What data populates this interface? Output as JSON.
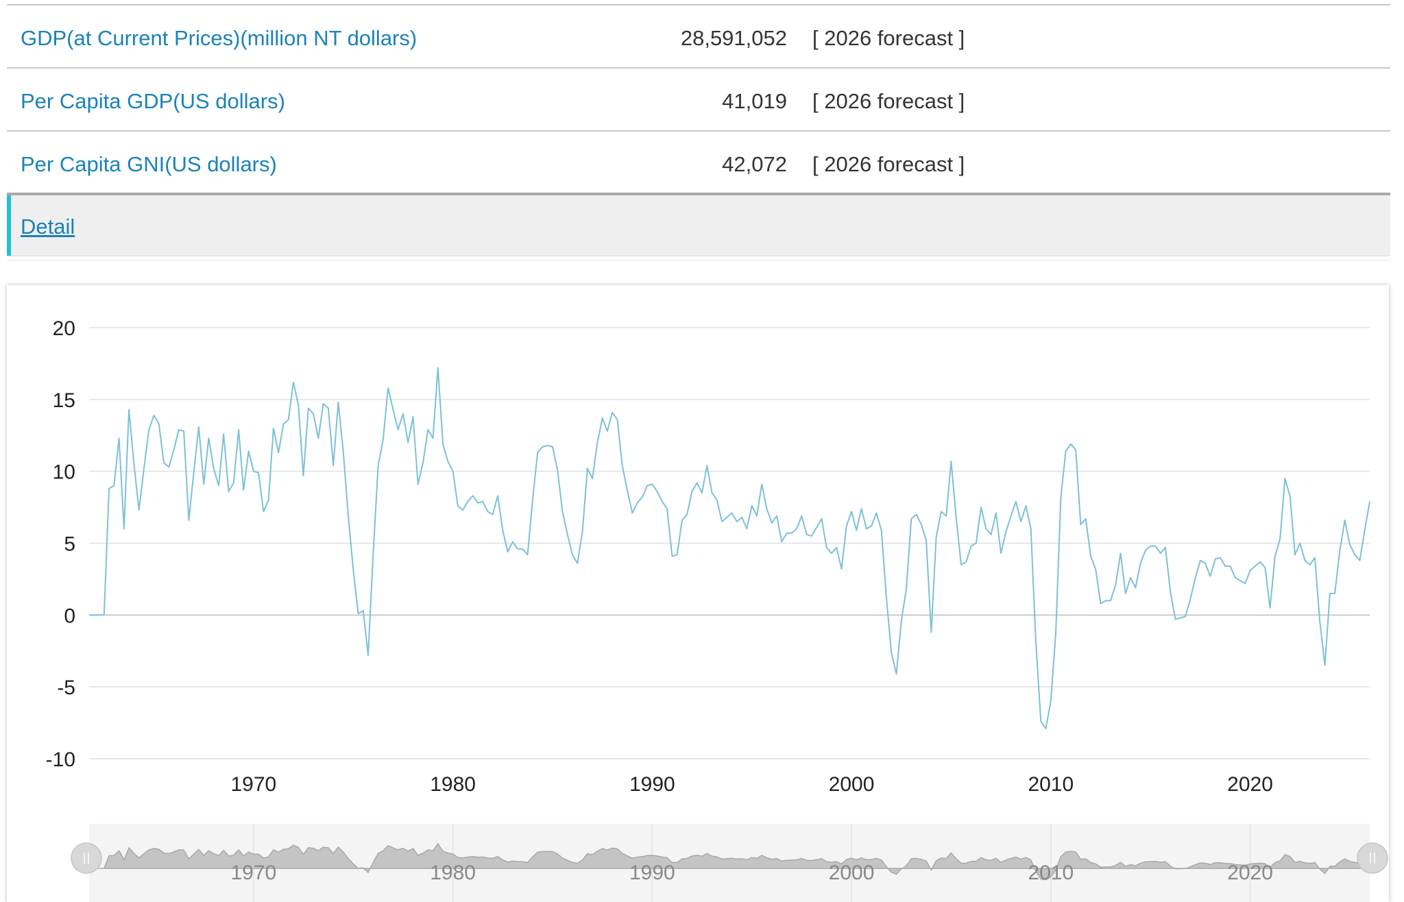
{
  "stats": [
    {
      "label": "GDP(at Current Prices)(million NT dollars)",
      "value": "28,591,052",
      "note": "[ 2026 forecast ]"
    },
    {
      "label": "Per Capita GDP(US dollars)",
      "value": "41,019",
      "note": "[ 2026 forecast ]"
    },
    {
      "label": "Per Capita GNI(US dollars)",
      "value": "42,072",
      "note": "[ 2026 forecast ]"
    }
  ],
  "detail_link": "Detail",
  "colors": {
    "link": "#1b82b8",
    "accent": "#1fc2d4",
    "series": "#7cc0d8",
    "navigator_fill": "#c4c4c4"
  },
  "navigator": {
    "handle_icon": "grip-icon",
    "x_ticks": [
      "1970",
      "1980",
      "1990",
      "2000",
      "2010",
      "2020"
    ]
  },
  "chart_data": {
    "type": "line",
    "title": "",
    "xlabel": "",
    "ylabel": "",
    "ylim": [
      -10,
      20
    ],
    "xlim": [
      1961.75,
      2026.0
    ],
    "y_ticks": [
      "-10",
      "-5",
      "0",
      "5",
      "10",
      "15",
      "20"
    ],
    "x_ticks": [
      "1970",
      "1980",
      "1990",
      "2000",
      "2010",
      "2020"
    ],
    "grid": true,
    "legend": "none",
    "series": [
      {
        "x": [
          1961.75,
          1962.0,
          1962.25,
          1962.5,
          1962.75,
          1963.0,
          1963.25,
          1963.5,
          1963.75,
          1964.0,
          1964.25,
          1964.5,
          1964.75,
          1965.0,
          1965.25,
          1965.5,
          1965.75,
          1966.0,
          1966.25,
          1966.5,
          1966.75,
          1967.0,
          1967.25,
          1967.5,
          1967.75,
          1968.0,
          1968.25,
          1968.5,
          1968.75,
          1969.0,
          1969.25,
          1969.5,
          1969.75,
          1970.0,
          1970.25,
          1970.5,
          1970.75,
          1971.0,
          1971.25,
          1971.5,
          1971.75,
          1972.0,
          1972.25,
          1972.5,
          1972.75,
          1973.0,
          1973.25,
          1973.5,
          1973.75,
          1974.0,
          1974.25,
          1974.5,
          1974.75,
          1975.0,
          1975.25,
          1975.5,
          1975.75,
          1976.0,
          1976.25,
          1976.5,
          1976.75,
          1977.0,
          1977.25,
          1977.5,
          1977.75,
          1978.0,
          1978.25,
          1978.5,
          1978.75,
          1979.0,
          1979.25,
          1979.5,
          1979.75,
          1980.0,
          1980.25,
          1980.5,
          1980.75,
          1981.0,
          1981.25,
          1981.5,
          1981.75,
          1982.0,
          1982.25,
          1982.5,
          1982.75,
          1983.0,
          1983.25,
          1983.5,
          1983.75,
          1984.0,
          1984.25,
          1984.5,
          1984.75,
          1985.0,
          1985.25,
          1985.5,
          1985.75,
          1986.0,
          1986.25,
          1986.5,
          1986.75,
          1987.0,
          1987.25,
          1987.5,
          1987.75,
          1988.0,
          1988.25,
          1988.5,
          1988.75,
          1989.0,
          1989.25,
          1989.5,
          1989.75,
          1990.0,
          1990.25,
          1990.5,
          1990.75,
          1991.0,
          1991.25,
          1991.5,
          1991.75,
          1992.0,
          1992.25,
          1992.5,
          1992.75,
          1993.0,
          1993.25,
          1993.5,
          1993.75,
          1994.0,
          1994.25,
          1994.5,
          1994.75,
          1995.0,
          1995.25,
          1995.5,
          1995.75,
          1996.0,
          1996.25,
          1996.5,
          1996.75,
          1997.0,
          1997.25,
          1997.5,
          1997.75,
          1998.0,
          1998.25,
          1998.5,
          1998.75,
          1999.0,
          1999.25,
          1999.5,
          1999.75,
          2000.0,
          2000.25,
          2000.5,
          2000.75,
          2001.0,
          2001.25,
          2001.5,
          2001.75,
          2002.0,
          2002.25,
          2002.5,
          2002.75,
          2003.0,
          2003.25,
          2003.5,
          2003.75,
          2004.0,
          2004.25,
          2004.5,
          2004.75,
          2005.0,
          2005.25,
          2005.5,
          2005.75,
          2006.0,
          2006.25,
          2006.5,
          2006.75,
          2007.0,
          2007.25,
          2007.5,
          2007.75,
          2008.0,
          2008.25,
          2008.5,
          2008.75,
          2009.0,
          2009.25,
          2009.5,
          2009.75,
          2010.0,
          2010.25,
          2010.5,
          2010.75,
          2011.0,
          2011.25,
          2011.5,
          2011.75,
          2012.0,
          2012.25,
          2012.5,
          2012.75,
          2013.0,
          2013.25,
          2013.5,
          2013.75,
          2014.0,
          2014.25,
          2014.5,
          2014.75,
          2015.0,
          2015.25,
          2015.5,
          2015.75,
          2016.0,
          2016.25,
          2016.5,
          2016.75,
          2017.0,
          2017.25,
          2017.5,
          2017.75,
          2018.0,
          2018.25,
          2018.5,
          2018.75,
          2019.0,
          2019.25,
          2019.5,
          2019.75,
          2020.0,
          2020.25,
          2020.5,
          2020.75,
          2021.0,
          2021.25,
          2021.5,
          2021.75,
          2022.0,
          2022.25,
          2022.5,
          2022.75,
          2023.0,
          2023.25,
          2023.5,
          2023.75,
          2024.0,
          2024.25,
          2024.5,
          2024.75,
          2025.0,
          2025.25,
          2025.5,
          2025.75,
          2026.0
        ],
        "y": [
          0.0,
          0.0,
          0.0,
          0.0,
          8.8,
          9.0,
          12.3,
          6.0,
          14.3,
          10.5,
          7.3,
          10.2,
          12.9,
          13.9,
          13.3,
          10.6,
          10.3,
          11.5,
          12.9,
          12.8,
          6.6,
          9.9,
          13.1,
          9.1,
          12.3,
          10.2,
          9.0,
          12.6,
          8.6,
          9.2,
          12.9,
          8.7,
          11.4,
          10.0,
          9.9,
          7.2,
          8.0,
          13.0,
          11.3,
          13.3,
          13.6,
          16.2,
          14.6,
          9.7,
          14.4,
          14.0,
          12.3,
          14.7,
          14.4,
          10.4,
          14.8,
          11.4,
          6.9,
          3.2,
          0.1,
          0.3,
          -2.8,
          4.2,
          10.4,
          12.2,
          15.8,
          14.3,
          12.9,
          14.0,
          12.0,
          13.8,
          9.1,
          10.6,
          12.9,
          12.3,
          17.2,
          11.9,
          10.7,
          10.0,
          7.6,
          7.3,
          7.9,
          8.3,
          7.8,
          7.9,
          7.2,
          7.0,
          8.3,
          5.9,
          4.4,
          5.1,
          4.6,
          4.6,
          4.2,
          8.0,
          11.3,
          11.7,
          11.8,
          11.7,
          10.1,
          7.2,
          5.6,
          4.2,
          3.6,
          5.8,
          10.2,
          9.5,
          12.0,
          13.7,
          12.8,
          14.1,
          13.6,
          10.4,
          8.7,
          7.1,
          7.8,
          8.2,
          9.0,
          9.1,
          8.6,
          7.9,
          7.4,
          4.1,
          4.2,
          6.6,
          7.0,
          8.6,
          9.2,
          8.5,
          10.4,
          8.5,
          8.0,
          6.5,
          6.8,
          7.1,
          6.5,
          6.8,
          6.0,
          7.6,
          6.9,
          9.1,
          7.4,
          6.4,
          6.9,
          5.1,
          5.7,
          5.7,
          6.0,
          6.9,
          5.6,
          5.5,
          6.1,
          6.7,
          4.7,
          4.3,
          4.7,
          3.2,
          6.2,
          7.2,
          5.9,
          7.4,
          6.0,
          6.2,
          7.1,
          5.9,
          1.2,
          -2.6,
          -4.1,
          -0.4,
          1.8,
          6.7,
          7.0,
          6.3,
          5.2,
          -1.2,
          5.4,
          7.2,
          6.9,
          10.7,
          6.8,
          3.5,
          3.7,
          4.8,
          5.0,
          7.5,
          6.0,
          5.6,
          7.1,
          4.3,
          5.8,
          6.9,
          7.9,
          6.5,
          7.6,
          6.0,
          -1.9,
          -7.4,
          -7.9,
          -6.0,
          -1.2,
          8.2,
          11.4,
          11.9,
          11.5,
          6.3,
          6.7,
          4.1,
          3.2,
          0.8,
          1.0,
          1.0,
          2.1,
          4.3,
          1.5,
          2.6,
          1.9,
          3.6,
          4.5,
          4.8,
          4.8,
          4.3,
          4.7,
          1.6,
          -0.3,
          -0.2,
          -0.1,
          1.1,
          2.6,
          3.8,
          3.6,
          2.7,
          3.9,
          4.0,
          3.4,
          3.4,
          2.6,
          2.4,
          2.2,
          3.1,
          3.4,
          3.7,
          3.3,
          0.5,
          4.1,
          5.3,
          9.5,
          8.3,
          4.2,
          5.0,
          3.8,
          3.5,
          4.0,
          -0.5,
          -3.5,
          1.5,
          1.5,
          4.5,
          6.6,
          4.9,
          4.2,
          3.8,
          5.9,
          7.9
        ]
      }
    ]
  }
}
